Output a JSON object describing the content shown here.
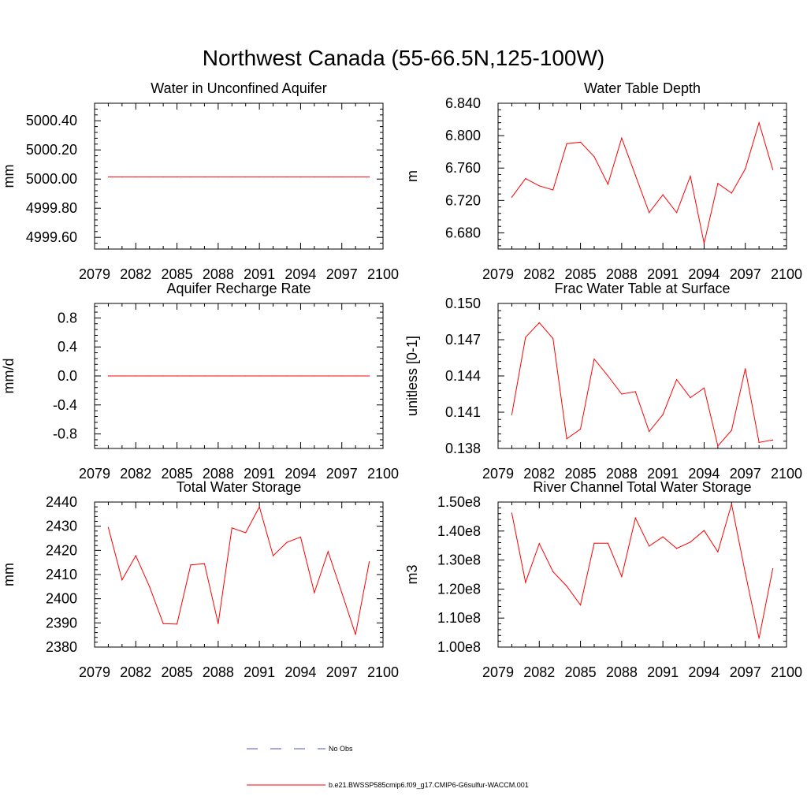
{
  "figure": {
    "title": "Northwest Canada (55-66.5N,125-100W)",
    "legend": {
      "items": [
        {
          "label": "No Obs",
          "color": "#5050c8",
          "dash": "dashed"
        },
        {
          "label": "b.e21.BWSSP585cmip6.f09_g17.CMIP6-G6sulfur-WACCM.001",
          "color": "#ff0000",
          "dash": "solid"
        }
      ]
    }
  },
  "chart_data": [
    {
      "type": "line",
      "title": "Water in Unconfined Aquifer",
      "xlabel": "",
      "ylabel": "mm",
      "xlim": [
        2079,
        2100
      ],
      "ylim": [
        4999.52,
        5000.52
      ],
      "xticks": [
        2079,
        2082,
        2085,
        2088,
        2091,
        2094,
        2097,
        2100
      ],
      "yticks": [
        4999.6,
        4999.8,
        5000.0,
        5000.2,
        5000.4
      ],
      "ytick_labels": [
        "4999.60",
        "4999.80",
        "5000.00",
        "5000.20",
        "5000.40"
      ],
      "x": [
        2080,
        2081,
        2082,
        2083,
        2084,
        2085,
        2086,
        2087,
        2088,
        2089,
        2090,
        2091,
        2092,
        2093,
        2094,
        2095,
        2096,
        2097,
        2098,
        2099
      ],
      "series": [
        {
          "values": [
            5000.015,
            5000.015,
            5000.015,
            5000.015,
            5000.015,
            5000.015,
            5000.015,
            5000.015,
            5000.015,
            5000.015,
            5000.015,
            5000.015,
            5000.015,
            5000.015,
            5000.015,
            5000.015,
            5000.015,
            5000.015,
            5000.015,
            5000.015
          ],
          "color": "#ff0000"
        }
      ]
    },
    {
      "type": "line",
      "title": "Water Table Depth",
      "xlabel": "",
      "ylabel": "m",
      "xlim": [
        2079,
        2100
      ],
      "ylim": [
        6.66,
        6.84
      ],
      "xticks": [
        2079,
        2082,
        2085,
        2088,
        2091,
        2094,
        2097,
        2100
      ],
      "yticks": [
        6.68,
        6.72,
        6.76,
        6.8,
        6.84
      ],
      "ytick_labels": [
        "6.680",
        "6.720",
        "6.760",
        "6.800",
        "6.840"
      ],
      "x": [
        2080,
        2081,
        2082,
        2083,
        2084,
        2085,
        2086,
        2087,
        2088,
        2089,
        2090,
        2091,
        2092,
        2093,
        2094,
        2095,
        2096,
        2097,
        2098,
        2099
      ],
      "series": [
        {
          "values": [
            6.724,
            6.747,
            6.738,
            6.733,
            6.79,
            6.792,
            6.774,
            6.74,
            6.797,
            6.751,
            6.705,
            6.727,
            6.705,
            6.75,
            6.667,
            6.741,
            6.729,
            6.759,
            6.816,
            6.758
          ],
          "color": "#ff0000"
        }
      ]
    },
    {
      "type": "line",
      "title": "Aquifer Recharge Rate",
      "xlabel": "",
      "ylabel": "mm/d",
      "xlim": [
        2079,
        2100
      ],
      "ylim": [
        -1.0,
        1.0
      ],
      "xticks": [
        2079,
        2082,
        2085,
        2088,
        2091,
        2094,
        2097,
        2100
      ],
      "yticks": [
        -0.8,
        -0.4,
        0.0,
        0.4,
        0.8
      ],
      "ytick_labels": [
        "-0.8",
        "-0.4",
        "0.0",
        "0.4",
        "0.8"
      ],
      "x": [
        2080,
        2081,
        2082,
        2083,
        2084,
        2085,
        2086,
        2087,
        2088,
        2089,
        2090,
        2091,
        2092,
        2093,
        2094,
        2095,
        2096,
        2097,
        2098,
        2099
      ],
      "series": [
        {
          "values": [
            0,
            0,
            0,
            0,
            0,
            0,
            0,
            0,
            0,
            0,
            0,
            0,
            0,
            0,
            0,
            0,
            0,
            0,
            0,
            0
          ],
          "color": "#ff0000"
        }
      ]
    },
    {
      "type": "line",
      "title": "Frac Water Table at Surface",
      "xlabel": "",
      "ylabel": "unitless [0-1]",
      "xlim": [
        2079,
        2100
      ],
      "ylim": [
        0.138,
        0.15
      ],
      "xticks": [
        2079,
        2082,
        2085,
        2088,
        2091,
        2094,
        2097,
        2100
      ],
      "yticks": [
        0.138,
        0.141,
        0.144,
        0.147,
        0.15
      ],
      "ytick_labels": [
        "0.138",
        "0.141",
        "0.144",
        "0.147",
        "0.150"
      ],
      "x": [
        2080,
        2081,
        2082,
        2083,
        2084,
        2085,
        2086,
        2087,
        2088,
        2089,
        2090,
        2091,
        2092,
        2093,
        2094,
        2095,
        2096,
        2097,
        2098,
        2099
      ],
      "series": [
        {
          "values": [
            0.1408,
            0.1472,
            0.1484,
            0.1471,
            0.1388,
            0.1396,
            0.1454,
            0.144,
            0.1425,
            0.1427,
            0.1394,
            0.1408,
            0.1437,
            0.1422,
            0.143,
            0.1382,
            0.1395,
            0.1446,
            0.1385,
            0.1387
          ],
          "color": "#ff0000"
        }
      ]
    },
    {
      "type": "line",
      "title": "Total Water Storage",
      "xlabel": "",
      "ylabel": "mm",
      "xlim": [
        2079,
        2100
      ],
      "ylim": [
        2380,
        2440
      ],
      "xticks": [
        2079,
        2082,
        2085,
        2088,
        2091,
        2094,
        2097,
        2100
      ],
      "yticks": [
        2380,
        2390,
        2400,
        2410,
        2420,
        2430,
        2440
      ],
      "ytick_labels": [
        "2380",
        "2390",
        "2400",
        "2410",
        "2420",
        "2430",
        "2440"
      ],
      "x": [
        2080,
        2081,
        2082,
        2083,
        2084,
        2085,
        2086,
        2087,
        2088,
        2089,
        2090,
        2091,
        2092,
        2093,
        2094,
        2095,
        2096,
        2097,
        2098,
        2099
      ],
      "series": [
        {
          "values": [
            2429.5,
            2407.8,
            2417.8,
            2405.0,
            2389.7,
            2389.5,
            2414.0,
            2414.5,
            2389.7,
            2429.3,
            2427.3,
            2438.0,
            2417.8,
            2423.3,
            2425.5,
            2402.5,
            2419.5,
            2402.5,
            2385.2,
            2415.3
          ],
          "color": "#ff0000"
        }
      ]
    },
    {
      "type": "line",
      "title": "River Channel Total Water Storage",
      "xlabel": "",
      "ylabel": "m3",
      "xlim": [
        2079,
        2100
      ],
      "ylim": [
        100000000.0,
        150000000.0
      ],
      "xticks": [
        2079,
        2082,
        2085,
        2088,
        2091,
        2094,
        2097,
        2100
      ],
      "yticks": [
        100000000.0,
        110000000.0,
        120000000.0,
        130000000.0,
        140000000.0,
        150000000.0
      ],
      "ytick_labels": [
        "1.00e8",
        "1.10e8",
        "1.20e8",
        "1.30e8",
        "1.40e8",
        "1.50e8"
      ],
      "x": [
        2080,
        2081,
        2082,
        2083,
        2084,
        2085,
        2086,
        2087,
        2088,
        2089,
        2090,
        2091,
        2092,
        2093,
        2094,
        2095,
        2096,
        2097,
        2098,
        2099
      ],
      "series": [
        {
          "values": [
            146200000.0,
            122300000.0,
            135700000.0,
            126000000.0,
            121000000.0,
            114500000.0,
            135800000.0,
            135800000.0,
            124300000.0,
            144500000.0,
            134800000.0,
            138000000.0,
            134000000.0,
            136200000.0,
            140200000.0,
            132800000.0,
            149300000.0,
            125500000.0,
            103000000.0,
            127000000.0
          ],
          "color": "#ff0000"
        }
      ]
    }
  ]
}
